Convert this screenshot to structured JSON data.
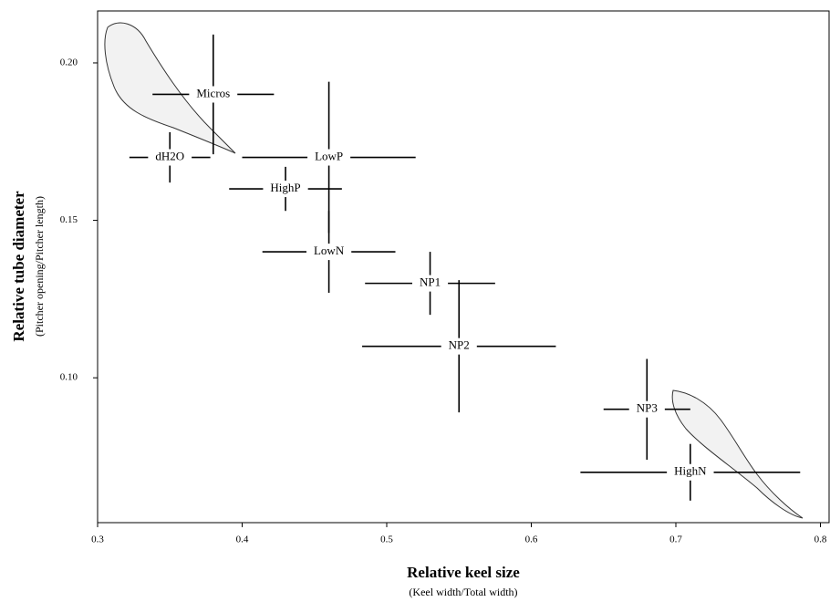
{
  "chart_data": {
    "type": "scatter",
    "xlabel": "Relative keel size",
    "xlabel_sub": "(Keel width/Total width)",
    "ylabel": "Relative tube diameter",
    "ylabel_sub": "(Pitcher opening/Pitcher length)",
    "xlim": [
      0.3,
      0.806
    ],
    "ylim": [
      0.054,
      0.2165
    ],
    "xticks": [
      0.3,
      0.4,
      0.5,
      0.6,
      0.7,
      0.8
    ],
    "yticks": [
      {
        "value": 0.1,
        "label": "0.10"
      },
      0.15,
      {
        "value": 0.2,
        "label": "0.20"
      }
    ],
    "color": "#000000",
    "points": [
      {
        "label": "Micros",
        "x": 0.38,
        "y": 0.19,
        "xerr": 0.042,
        "yerr": 0.019
      },
      {
        "label": "dH2O",
        "x": 0.35,
        "y": 0.17,
        "xerr": 0.028,
        "yerr": 0.008
      },
      {
        "label": "LowP",
        "x": 0.46,
        "y": 0.17,
        "xerr": 0.06,
        "yerr": 0.024
      },
      {
        "label": "HighP",
        "x": 0.43,
        "y": 0.16,
        "xerr": 0.039,
        "yerr": 0.007
      },
      {
        "label": "LowN",
        "x": 0.46,
        "y": 0.14,
        "xerr": 0.046,
        "yerr": 0.013
      },
      {
        "label": "NP1",
        "x": 0.53,
        "y": 0.13,
        "xerr": 0.045,
        "yerr": 0.01
      },
      {
        "label": "NP2",
        "x": 0.55,
        "y": 0.11,
        "xerr": 0.067,
        "yerr": 0.021
      },
      {
        "label": "NP3",
        "x": 0.68,
        "y": 0.09,
        "xerr": 0.03,
        "yerr": 0.016
      },
      {
        "label": "HighN",
        "x": 0.71,
        "y": 0.07,
        "xerr": 0.076,
        "yerr": 0.009
      }
    ]
  }
}
